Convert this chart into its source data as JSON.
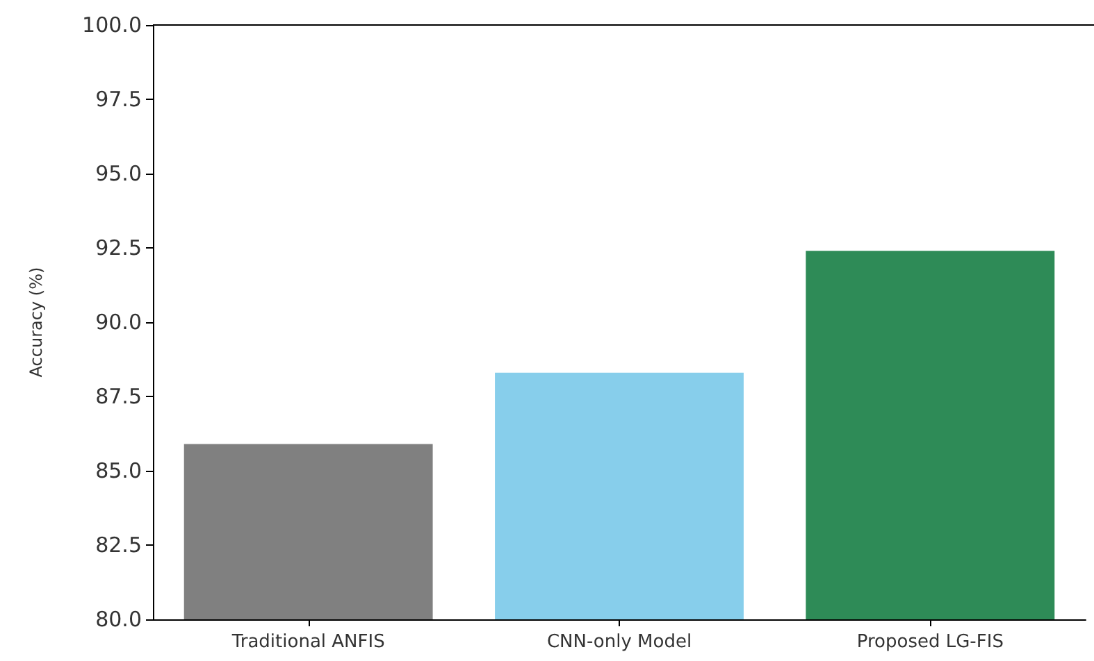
{
  "chart_data": {
    "type": "bar",
    "ylabel": "Accuracy (%)",
    "categories": [
      "Traditional ANFIS",
      "CNN-only Model",
      "Proposed LG-FIS"
    ],
    "values": [
      85.9,
      88.3,
      92.4
    ],
    "colors": [
      "#808080",
      "#87ceeb",
      "#2e8b57"
    ],
    "ylim": [
      80,
      100
    ],
    "yticks": [
      {
        "value": 80,
        "label": "80.0"
      },
      82.5,
      {
        "value": 85,
        "label": "85.0"
      },
      87.5,
      {
        "value": 90,
        "label": "90.0"
      },
      92.5,
      {
        "value": 95,
        "label": "95.0"
      },
      97.5,
      {
        "value": 100,
        "label": "100.0"
      }
    ],
    "grid": false
  }
}
